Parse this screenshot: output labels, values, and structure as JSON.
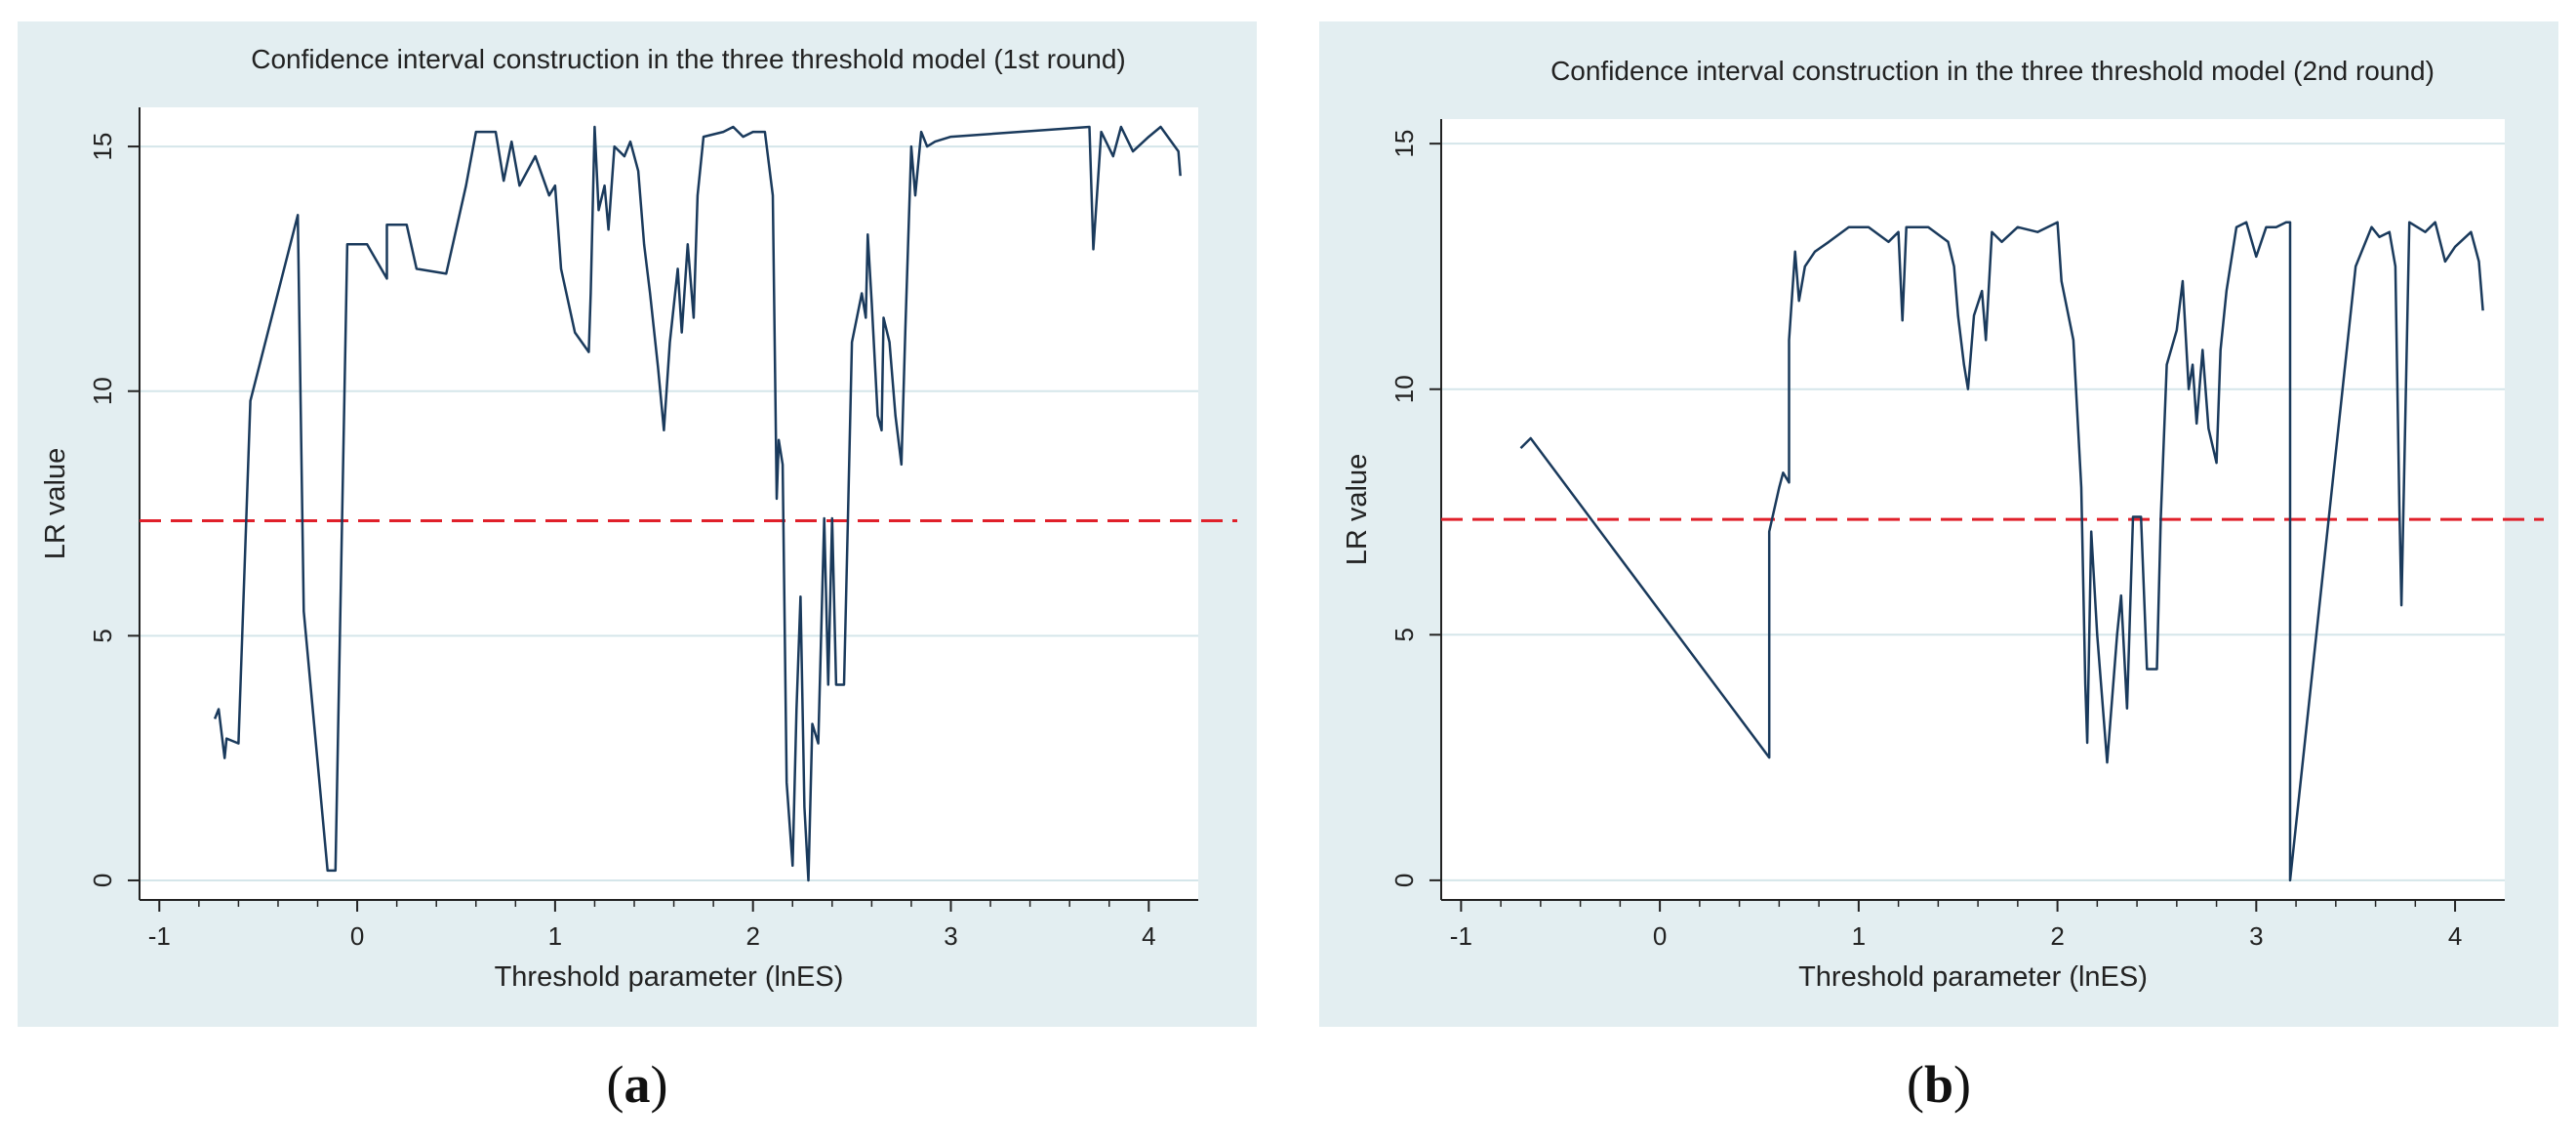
{
  "theme": {
    "panel_bg": "#e3eef1",
    "plot_bg": "#ffffff",
    "line": "#1a3a5c",
    "threshold": "#e0202a",
    "grid": "#d5e6ea"
  },
  "captions": [
    {
      "open": "(",
      "letter": "a",
      "close": ")"
    },
    {
      "open": "(",
      "letter": "b",
      "close": ")"
    }
  ],
  "chart_data": [
    {
      "type": "line",
      "title": "Confidence interval construction in the three threshold model (1st round)",
      "xlabel": "Threshold parameter (lnES)",
      "ylabel": "LR value",
      "xlim": [
        -1.1,
        4.25
      ],
      "ylim": [
        -0.4,
        15.8
      ],
      "xticks": [
        -1,
        0,
        1,
        2,
        3,
        4
      ],
      "xtick_labels": [
        "-1",
        "0",
        "1",
        "2",
        "3",
        "4"
      ],
      "yticks": [
        0,
        5,
        10,
        15
      ],
      "ytick_labels": [
        "0",
        "5",
        "10",
        "15"
      ],
      "grid": true,
      "threshold_line": 7.35,
      "series": [
        {
          "points": [
            [
              -0.72,
              3.3
            ],
            [
              -0.7,
              3.5
            ],
            [
              -0.67,
              2.5
            ],
            [
              -0.66,
              2.9
            ],
            [
              -0.6,
              2.8
            ],
            [
              -0.54,
              9.8
            ],
            [
              -0.3,
              13.6
            ],
            [
              -0.27,
              5.5
            ],
            [
              -0.15,
              0.2
            ],
            [
              -0.11,
              0.2
            ],
            [
              -0.05,
              13.0
            ],
            [
              0.05,
              13.0
            ],
            [
              0.15,
              12.3
            ],
            [
              0.15,
              13.4
            ],
            [
              0.25,
              13.4
            ],
            [
              0.3,
              12.5
            ],
            [
              0.45,
              12.4
            ],
            [
              0.55,
              14.2
            ],
            [
              0.6,
              15.3
            ],
            [
              0.7,
              15.3
            ],
            [
              0.74,
              14.3
            ],
            [
              0.78,
              15.1
            ],
            [
              0.82,
              14.2
            ],
            [
              0.9,
              14.8
            ],
            [
              0.97,
              14.0
            ],
            [
              1.0,
              14.2
            ],
            [
              1.03,
              12.5
            ],
            [
              1.1,
              11.2
            ],
            [
              1.17,
              10.8
            ],
            [
              1.18,
              12.0
            ],
            [
              1.2,
              15.4
            ],
            [
              1.22,
              13.7
            ],
            [
              1.25,
              14.2
            ],
            [
              1.27,
              13.3
            ],
            [
              1.3,
              15.0
            ],
            [
              1.35,
              14.8
            ],
            [
              1.38,
              15.1
            ],
            [
              1.42,
              14.5
            ],
            [
              1.45,
              13.0
            ],
            [
              1.48,
              12.0
            ],
            [
              1.52,
              10.5
            ],
            [
              1.55,
              9.2
            ],
            [
              1.58,
              11.0
            ],
            [
              1.62,
              12.5
            ],
            [
              1.64,
              11.2
            ],
            [
              1.67,
              13.0
            ],
            [
              1.7,
              11.5
            ],
            [
              1.72,
              14.0
            ],
            [
              1.75,
              15.2
            ],
            [
              1.85,
              15.3
            ],
            [
              1.9,
              15.4
            ],
            [
              1.95,
              15.2
            ],
            [
              2.0,
              15.3
            ],
            [
              2.06,
              15.3
            ],
            [
              2.1,
              14.0
            ],
            [
              2.12,
              7.8
            ],
            [
              2.13,
              9.0
            ],
            [
              2.15,
              8.5
            ],
            [
              2.17,
              2.0
            ],
            [
              2.2,
              0.3
            ],
            [
              2.22,
              3.5
            ],
            [
              2.24,
              5.8
            ],
            [
              2.26,
              1.5
            ],
            [
              2.28,
              0.0
            ],
            [
              2.3,
              3.2
            ],
            [
              2.33,
              2.8
            ],
            [
              2.36,
              7.4
            ],
            [
              2.38,
              4.0
            ],
            [
              2.4,
              7.4
            ],
            [
              2.42,
              4.0
            ],
            [
              2.46,
              4.0
            ],
            [
              2.48,
              7.4
            ],
            [
              2.5,
              11.0
            ],
            [
              2.55,
              12.0
            ],
            [
              2.57,
              11.5
            ],
            [
              2.58,
              13.2
            ],
            [
              2.6,
              11.8
            ],
            [
              2.63,
              9.5
            ],
            [
              2.65,
              9.2
            ],
            [
              2.66,
              11.5
            ],
            [
              2.69,
              11.0
            ],
            [
              2.72,
              9.5
            ],
            [
              2.75,
              8.5
            ],
            [
              2.77,
              11.3
            ],
            [
              2.8,
              15.0
            ],
            [
              2.82,
              14.0
            ],
            [
              2.85,
              15.3
            ],
            [
              2.88,
              15.0
            ],
            [
              2.92,
              15.1
            ],
            [
              3.0,
              15.2
            ],
            [
              3.7,
              15.4
            ],
            [
              3.72,
              12.9
            ],
            [
              3.76,
              15.3
            ],
            [
              3.82,
              14.8
            ],
            [
              3.86,
              15.4
            ],
            [
              3.92,
              14.9
            ],
            [
              4.0,
              15.2
            ],
            [
              4.06,
              15.4
            ],
            [
              4.15,
              14.9
            ],
            [
              4.16,
              14.4
            ]
          ]
        }
      ]
    },
    {
      "type": "line",
      "title": "Confidence interval construction in the three threshold model (2nd round)",
      "xlabel": "Threshold parameter (lnES)",
      "ylabel": "LR value",
      "xlim": [
        -1.1,
        4.25
      ],
      "ylim": [
        -0.4,
        15.5
      ],
      "xticks": [
        -1,
        0,
        1,
        2,
        3,
        4
      ],
      "xtick_labels": [
        "-1",
        "0",
        "1",
        "2",
        "3",
        "4"
      ],
      "yticks": [
        0,
        5,
        10,
        15
      ],
      "ytick_labels": [
        "0",
        "5",
        "10",
        "15"
      ],
      "grid": true,
      "threshold_line": 7.35,
      "series": [
        {
          "points": [
            [
              -0.7,
              8.8
            ],
            [
              -0.65,
              9.0
            ],
            [
              0.55,
              2.5
            ],
            [
              0.55,
              7.1
            ],
            [
              0.6,
              8.0
            ],
            [
              0.62,
              8.3
            ],
            [
              0.65,
              8.1
            ],
            [
              0.65,
              11.0
            ],
            [
              0.68,
              12.8
            ],
            [
              0.7,
              11.8
            ],
            [
              0.73,
              12.5
            ],
            [
              0.78,
              12.8
            ],
            [
              0.85,
              13.0
            ],
            [
              0.95,
              13.3
            ],
            [
              1.05,
              13.3
            ],
            [
              1.15,
              13.0
            ],
            [
              1.2,
              13.2
            ],
            [
              1.22,
              11.4
            ],
            [
              1.24,
              13.3
            ],
            [
              1.35,
              13.3
            ],
            [
              1.45,
              13.0
            ],
            [
              1.48,
              12.5
            ],
            [
              1.5,
              11.5
            ],
            [
              1.53,
              10.5
            ],
            [
              1.55,
              10.0
            ],
            [
              1.58,
              11.5
            ],
            [
              1.62,
              12.0
            ],
            [
              1.64,
              11.0
            ],
            [
              1.67,
              13.2
            ],
            [
              1.72,
              13.0
            ],
            [
              1.8,
              13.3
            ],
            [
              1.9,
              13.2
            ],
            [
              2.0,
              13.4
            ],
            [
              2.02,
              12.2
            ],
            [
              2.08,
              11.0
            ],
            [
              2.12,
              8.0
            ],
            [
              2.14,
              4.0
            ],
            [
              2.15,
              2.8
            ],
            [
              2.17,
              7.1
            ],
            [
              2.2,
              5.0
            ],
            [
              2.25,
              2.4
            ],
            [
              2.3,
              5.0
            ],
            [
              2.32,
              5.8
            ],
            [
              2.35,
              3.5
            ],
            [
              2.38,
              7.4
            ],
            [
              2.42,
              7.4
            ],
            [
              2.45,
              4.3
            ],
            [
              2.5,
              4.3
            ],
            [
              2.52,
              7.4
            ],
            [
              2.55,
              10.5
            ],
            [
              2.6,
              11.2
            ],
            [
              2.63,
              12.2
            ],
            [
              2.66,
              10.0
            ],
            [
              2.68,
              10.5
            ],
            [
              2.7,
              9.3
            ],
            [
              2.73,
              10.8
            ],
            [
              2.76,
              9.2
            ],
            [
              2.8,
              8.5
            ],
            [
              2.82,
              10.8
            ],
            [
              2.85,
              12.0
            ],
            [
              2.9,
              13.3
            ],
            [
              2.95,
              13.4
            ],
            [
              3.0,
              12.7
            ],
            [
              3.05,
              13.3
            ],
            [
              3.1,
              13.3
            ],
            [
              3.15,
              13.4
            ],
            [
              3.17,
              13.4
            ],
            [
              3.17,
              0.0
            ],
            [
              3.5,
              12.5
            ],
            [
              3.58,
              13.3
            ],
            [
              3.62,
              13.1
            ],
            [
              3.67,
              13.2
            ],
            [
              3.7,
              12.5
            ],
            [
              3.72,
              7.6
            ],
            [
              3.73,
              5.6
            ],
            [
              3.74,
              7.5
            ],
            [
              3.77,
              13.4
            ],
            [
              3.85,
              13.2
            ],
            [
              3.9,
              13.4
            ],
            [
              3.95,
              12.6
            ],
            [
              4.0,
              12.9
            ],
            [
              4.08,
              13.2
            ],
            [
              4.12,
              12.6
            ],
            [
              4.14,
              11.6
            ]
          ]
        }
      ]
    }
  ]
}
